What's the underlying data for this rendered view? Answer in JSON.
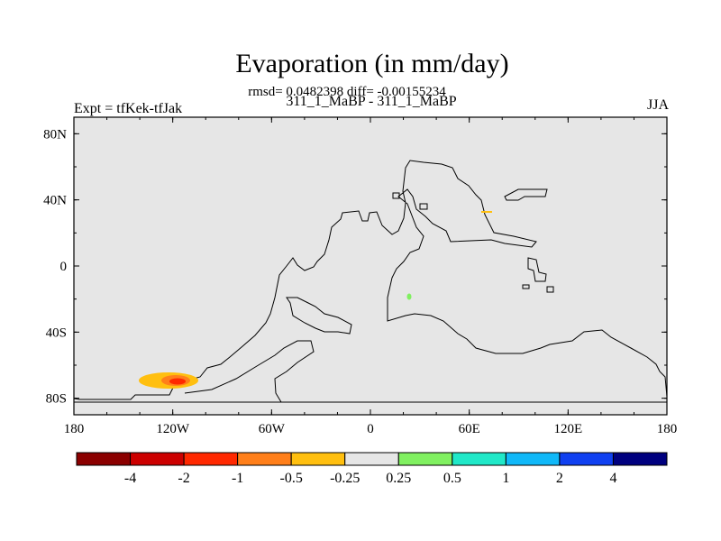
{
  "title": "Evaporation (in mm/day)",
  "stats": "rmsd= 0.0482398 diff= -0.00155234",
  "subtitle": "311_1_MaBP - 311_1_MaBP",
  "left_label": "Expt = tfKek-tfJak",
  "right_label": "JJA",
  "chart_data": {
    "type": "heatmap",
    "x_ticks": [
      "180",
      "120W",
      "60W",
      "0",
      "60E",
      "120E",
      "180"
    ],
    "y_ticks": [
      "80N",
      "40N",
      "0",
      "40S",
      "80S"
    ],
    "xlim": [
      -180,
      180
    ],
    "ylim": [
      -90,
      90
    ],
    "colorbar": {
      "labels": [
        "-4",
        "-2",
        "-1",
        "-0.5",
        "-0.25",
        "0.25",
        "0.5",
        "1",
        "2",
        "4"
      ],
      "colors": [
        "#8b0000",
        "#cc0000",
        "#ff2800",
        "#ff7f1a",
        "#ffbf0f",
        "#e6e6e6",
        "#80f060",
        "#20e8c8",
        "#10b8f8",
        "#1040f0",
        "#00007f"
      ]
    },
    "background_color": "#e6e6e6"
  }
}
